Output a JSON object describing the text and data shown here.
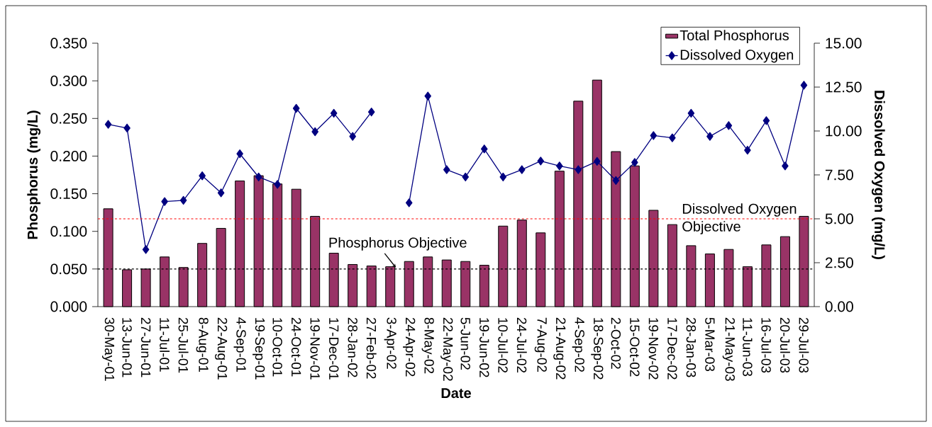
{
  "chart_data": {
    "type": "bar",
    "xlabel": "Date",
    "ylabel": "Phosphorus (mg/L)",
    "y2label": "Dissolved Oxygen (mg/L)",
    "categories": [
      "30-May-01",
      "13-Jun-01",
      "27-Jun-01",
      "11-Jul-01",
      "25-Jul-01",
      "8-Aug-01",
      "22-Aug-01",
      "4-Sep-01",
      "19-Sep-01",
      "10-Oct-01",
      "24-Oct-01",
      "19-Nov-01",
      "17-Dec-01",
      "28-Jan-02",
      "27-Feb-02",
      "3-Apr-02",
      "24-Apr-02",
      "8-May-02",
      "22-May-02",
      "5-Jun-02",
      "19-Jun-02",
      "10-Jul-02",
      "24-Jul-02",
      "7-Aug-02",
      "21-Aug-02",
      "4-Sep-02",
      "18-Sep-02",
      "2-Oct-02",
      "15-Oct-02",
      "19-Nov-02",
      "17-Dec-02",
      "28-Jan-03",
      "5-Mar-03",
      "21-May-03",
      "11-Jun-03",
      "16-Jul-03",
      "20-Jul-03",
      "29-Jul-03"
    ],
    "series": [
      {
        "name": "Total Phosphorus",
        "color": "#993366",
        "values": [
          0.13,
          0.049,
          0.05,
          0.066,
          0.052,
          0.084,
          0.104,
          0.167,
          0.174,
          0.163,
          0.156,
          0.12,
          0.071,
          0.056,
          0.054,
          0.053,
          0.06,
          0.066,
          0.062,
          0.06,
          0.055,
          0.107,
          0.115,
          0.098,
          0.18,
          0.273,
          0.301,
          0.206,
          0.187,
          0.128,
          0.109,
          0.081,
          0.07,
          0.076,
          0.053,
          0.082,
          0.093,
          0.12
        ]
      },
      {
        "name": "Dissolved Oxygen",
        "type": "line",
        "axis": "y2",
        "color": "#000080",
        "marker": "diamond",
        "values": [
          10.38,
          10.17,
          3.25,
          5.98,
          6.05,
          7.45,
          6.48,
          8.7,
          7.38,
          6.96,
          11.29,
          9.96,
          11.01,
          9.69,
          11.08,
          null,
          5.91,
          11.99,
          7.8,
          7.38,
          8.98,
          7.38,
          7.8,
          8.29,
          8.01,
          7.8,
          8.27,
          7.18,
          8.21,
          9.74,
          9.61,
          11.01,
          9.69,
          10.31,
          8.91,
          10.59,
          8.01,
          12.61
        ]
      }
    ],
    "ylim": [
      0,
      0.35
    ],
    "yticks": [
      {
        "value": 0,
        "label": "0.000"
      },
      {
        "value": 0.05,
        "label": "0.050"
      },
      {
        "value": 0.1,
        "label": "0.100"
      },
      {
        "value": 0.15,
        "label": "0.150"
      },
      {
        "value": 0.2,
        "label": "0.200"
      },
      {
        "value": 0.25,
        "label": "0.250"
      },
      {
        "value": 0.3,
        "label": "0.300"
      },
      {
        "value": 0.35,
        "label": "0.350"
      }
    ],
    "y2lim": [
      0,
      15
    ],
    "y2ticks": [
      {
        "value": 0,
        "label": "0.00"
      },
      {
        "value": 2.5,
        "label": "2.50"
      },
      {
        "value": 5,
        "label": "5.00"
      },
      {
        "value": 7.5,
        "label": "7.50"
      },
      {
        "value": 10,
        "label": "10.00"
      },
      {
        "value": 12.5,
        "label": "12.50"
      },
      {
        "value": 15,
        "label": "15.00"
      }
    ],
    "ref_lines": [
      {
        "axis": "y",
        "value": 0.05,
        "label": "Phosphorus Objective",
        "color": "#000000",
        "line_style": "dashed"
      },
      {
        "axis": "y2",
        "value": 5,
        "label": "Dissolved Oxygen Objective",
        "color": "#ff0000",
        "line_style": "dashed"
      }
    ],
    "legend": "top right"
  }
}
